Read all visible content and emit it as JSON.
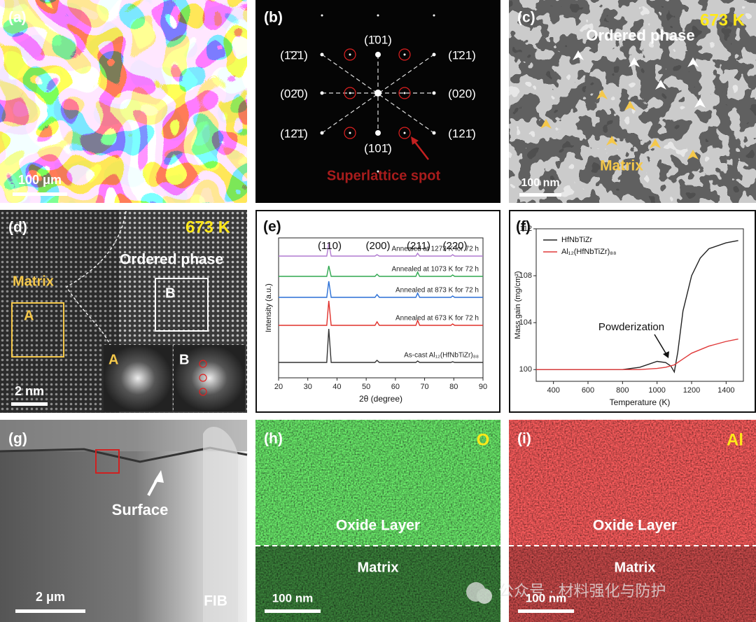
{
  "panels": {
    "a": {
      "label": "(a)",
      "scale_bar": "100 μm"
    },
    "b": {
      "label": "(b)",
      "spots": [
        "(1̄2̄1)",
        "(1̄01)",
        "(1̄21)",
        "(02̄0)",
        "(020)",
        "(12̄1̄)",
        "(101̄)",
        "(121̄)"
      ],
      "annotation": "Superlattice spot"
    },
    "c": {
      "label": "(c)",
      "temperature": "673 K",
      "ordered": "Ordered phase",
      "matrix": "Matrix",
      "scale_bar": "100 nm"
    },
    "d": {
      "label": "(d)",
      "temperature": "673 K",
      "matrix": "Matrix",
      "ordered": "Ordered phase",
      "box_a": "A",
      "box_b": "B",
      "inset_a": "A",
      "inset_b": "B",
      "scale_bar": "2 nm"
    },
    "g": {
      "label": "(g)",
      "surface": "Surface",
      "scale_bar": "2 μm",
      "method": "FIB"
    },
    "h": {
      "label": "(h)",
      "element": "O",
      "oxide": "Oxide Layer",
      "matrix": "Matrix",
      "scale_bar": "100 nm"
    },
    "i": {
      "label": "(i)",
      "element": "Al",
      "oxide": "Oxide Layer",
      "matrix": "Matrix",
      "scale_bar": "100 nm"
    }
  },
  "chart_data": [
    {
      "type": "line",
      "label": "(e)",
      "x_label": "2θ (degree)",
      "y_label": "Intensity (a.u.)",
      "peaks": [
        "(110)",
        "(200)",
        "(211)",
        "(220)"
      ],
      "xlim": [
        20,
        90
      ],
      "xticks": [
        20,
        30,
        40,
        50,
        60,
        70,
        80,
        90
      ],
      "ylim": [
        0,
        100
      ],
      "x": [
        20,
        36.5,
        37.2,
        38,
        53,
        53.7,
        54.5,
        67,
        67.6,
        68.3,
        79,
        79.6,
        80.3,
        90
      ],
      "series": [
        {
          "name": "As-cast Al₁₂(HfNbTiZr)₈₈",
          "color": "#333333",
          "values": [
            11,
            11,
            35,
            11,
            11,
            12.5,
            11,
            11,
            12,
            11,
            11,
            11.5,
            11,
            11
          ]
        },
        {
          "name": "Annealed at 673 K for 72 h",
          "color": "#e0302a",
          "values": [
            37.5,
            37.5,
            55,
            37.5,
            37.5,
            40,
            37.5,
            37.5,
            41,
            37.5,
            37.5,
            38.5,
            37.5,
            37.5
          ]
        },
        {
          "name": "Annealed at 873 K for 72 h",
          "color": "#2a6fd6",
          "values": [
            57.5,
            57.5,
            69,
            57.5,
            57.5,
            59.5,
            57.5,
            57.5,
            60.5,
            57.5,
            57.5,
            58.5,
            57.5,
            57.5
          ]
        },
        {
          "name": "Annealed at 1073 K for 72 h",
          "color": "#2fa84f",
          "values": [
            72.5,
            72.5,
            80,
            72.5,
            72.5,
            74,
            72.5,
            72.5,
            75.5,
            72.5,
            72.5,
            73.5,
            72.5,
            72.5
          ]
        },
        {
          "name": "Annealed at 1273 K for 72 h",
          "color": "#b07ad0",
          "values": [
            87,
            87,
            96,
            87,
            87,
            88,
            87,
            87,
            89,
            87,
            87,
            88,
            87,
            87
          ]
        }
      ]
    },
    {
      "type": "line",
      "label": "(f)",
      "x_label": "Temperature (K)",
      "y_label": "Mass gain (mg/cm²)",
      "annotation": "Powderization",
      "xlim": [
        300,
        1500
      ],
      "xticks": [
        400,
        600,
        800,
        1000,
        1200,
        1400
      ],
      "ylim": [
        99,
        112
      ],
      "yticks": [
        100,
        104,
        108,
        112
      ],
      "series": [
        {
          "name": "HfNbTiZr",
          "color": "#222222",
          "x": [
            300,
            800,
            900,
            1000,
            1050,
            1080,
            1100,
            1120,
            1150,
            1200,
            1250,
            1300,
            1400,
            1470
          ],
          "values": [
            100,
            100,
            100.2,
            100.7,
            100.6,
            100.3,
            99.8,
            101.5,
            105,
            108,
            109.5,
            110.3,
            110.8,
            111
          ]
        },
        {
          "name": "Al₁₂(HfNbTiZr)₈₈",
          "color": "#e03a3a",
          "x": [
            300,
            900,
            1000,
            1050,
            1100,
            1150,
            1200,
            1300,
            1400,
            1470
          ],
          "values": [
            100,
            100,
            100.1,
            100.2,
            100.4,
            100.9,
            101.4,
            102,
            102.4,
            102.6
          ]
        }
      ]
    }
  ],
  "watermark": "公众号 · 材料强化与防护"
}
